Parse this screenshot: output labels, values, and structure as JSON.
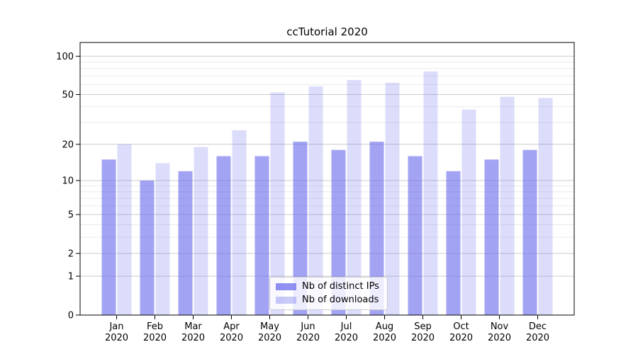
{
  "chart_data": {
    "type": "bar",
    "title": "ccTutorial 2020",
    "categories": [
      "Jan\n2020",
      "Feb\n2020",
      "Mar\n2020",
      "Apr\n2020",
      "May\n2020",
      "Jun\n2020",
      "Jul\n2020",
      "Aug\n2020",
      "Sep\n2020",
      "Oct\n2020",
      "Nov\n2020",
      "Dec\n2020"
    ],
    "series": [
      {
        "name": "Nb of distinct IPs",
        "color": "#6b6bee",
        "opacity": 0.62,
        "values": [
          15,
          10,
          12,
          16,
          16,
          21,
          18,
          21,
          16,
          12,
          15,
          18
        ]
      },
      {
        "name": "Nb of downloads",
        "color": "#6b6bee",
        "opacity": 0.24,
        "values": [
          20,
          14,
          19,
          26,
          52,
          58,
          65,
          62,
          76,
          38,
          48,
          47
        ]
      }
    ],
    "xlabel": "",
    "ylabel": "",
    "yscale": "symlog",
    "yticks": [
      0,
      1,
      2,
      5,
      10,
      20,
      50,
      100
    ],
    "minor_yticks": [
      3,
      4,
      6,
      7,
      8,
      9,
      30,
      40,
      60,
      70,
      80,
      90
    ],
    "ylim": [
      0,
      128
    ],
    "grid": true,
    "grid_major_color": "#cccccc",
    "grid_minor_color": "#eaeaea",
    "axis_color": "#000000",
    "legend": {
      "position": "lower-center"
    }
  }
}
